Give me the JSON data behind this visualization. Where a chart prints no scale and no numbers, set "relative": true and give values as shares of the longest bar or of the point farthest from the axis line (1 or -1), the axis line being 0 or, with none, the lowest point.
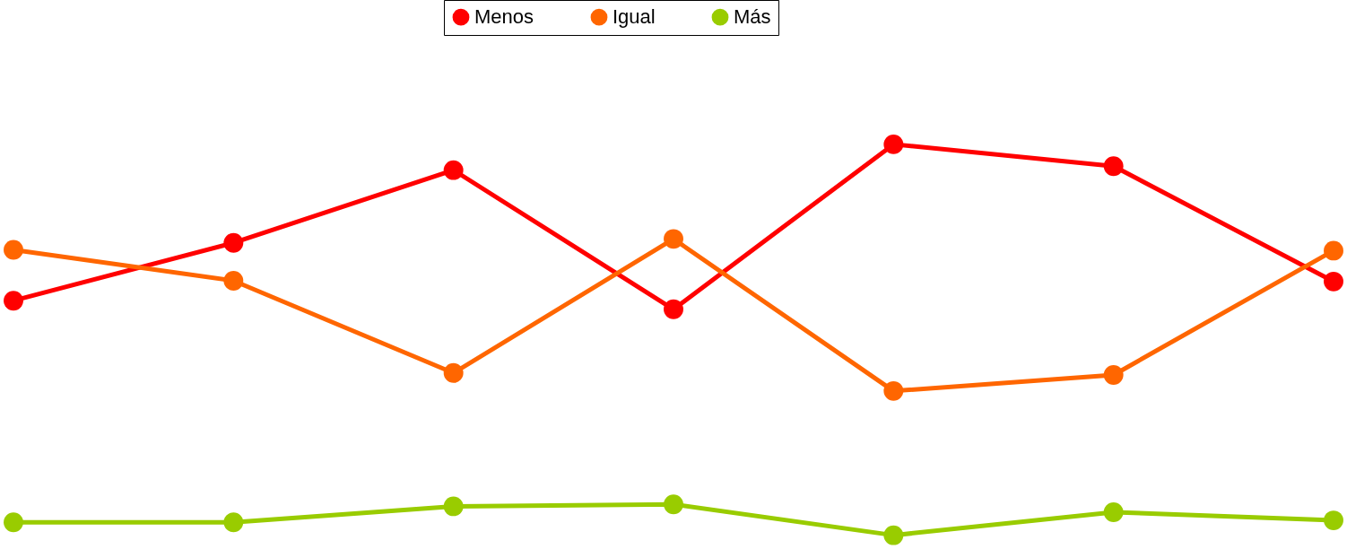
{
  "chart_data": {
    "type": "line",
    "relative": true,
    "categories": [
      null,
      null,
      null,
      null,
      null,
      null,
      null
    ],
    "legend": "top",
    "marker": "circle",
    "line_style": "solid",
    "series": [
      {
        "name": "Menos",
        "color": "#ff0000",
        "values": [
          0.6,
          0.748,
          0.934,
          0.578,
          1.0,
          0.944,
          0.649
        ]
      },
      {
        "name": "Igual",
        "color": "#ff6600",
        "values": [
          0.73,
          0.651,
          0.415,
          0.758,
          0.369,
          0.41,
          0.728
        ]
      },
      {
        "name": "Más",
        "color": "#99cc00",
        "values": [
          0.033,
          0.033,
          0.074,
          0.079,
          0.0,
          0.059,
          0.038
        ]
      }
    ]
  }
}
